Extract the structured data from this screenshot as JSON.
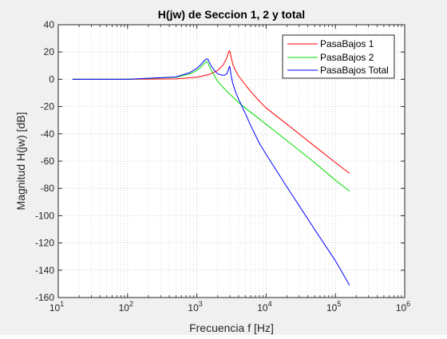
{
  "chart_data": {
    "type": "line",
    "title": "H(jw) de Seccion 1, 2 y total",
    "xlabel": "Frecuencia f [Hz]",
    "ylabel": "Magnitud H(jw) [dB]",
    "xscale": "log",
    "xlim": [
      10,
      1000000
    ],
    "ylim": [
      -160,
      40
    ],
    "x_tick_exponents": [
      "1",
      "2",
      "3",
      "4",
      "5",
      "6"
    ],
    "x_tick_base": "10",
    "y_ticks": [
      40,
      20,
      0,
      -20,
      -40,
      -60,
      -80,
      -100,
      -120,
      -140,
      -160
    ],
    "grid": true,
    "minor_grid": true,
    "legend_position": "top-right",
    "series": [
      {
        "name": "PasaBajos 1",
        "color": "#ff0000",
        "x": [
          16,
          100,
          500,
          1000,
          1500,
          2000,
          2400,
          2700,
          2850,
          2950,
          3000,
          3050,
          3150,
          3300,
          3600,
          4000,
          5000,
          6000,
          8000,
          10000,
          20000,
          50000,
          100000,
          160000
        ],
        "y": [
          0,
          0,
          0.3,
          1.5,
          3.5,
          6.5,
          10.5,
          15.5,
          19.5,
          21,
          20.5,
          19,
          15.5,
          11,
          6.5,
          2.5,
          -4,
          -9,
          -16,
          -21,
          -33,
          -49,
          -61,
          -69
        ]
      },
      {
        "name": "PasaBajos 2",
        "color": "#00dd00",
        "x": [
          16,
          100,
          500,
          800,
          1000,
          1150,
          1300,
          1380,
          1420,
          1450,
          1500,
          1600,
          1800,
          2000,
          2500,
          3000,
          4000,
          5000,
          10000,
          20000,
          50000,
          100000,
          160000
        ],
        "y": [
          0,
          0,
          1.5,
          4,
          6.5,
          9,
          12,
          13,
          12.5,
          12,
          10,
          7,
          2.5,
          -1.5,
          -7,
          -11,
          -17,
          -21,
          -33,
          -45,
          -61,
          -74,
          -82
        ]
      },
      {
        "name": "PasaBajos Total",
        "color": "#0000ff",
        "x": [
          16,
          100,
          500,
          800,
          1000,
          1150,
          1300,
          1380,
          1420,
          1450,
          1500,
          1600,
          1800,
          2000,
          2300,
          2500,
          2700,
          2850,
          2950,
          3000,
          3050,
          3150,
          3300,
          3600,
          4000,
          5000,
          6000,
          8000,
          10000,
          20000,
          50000,
          100000,
          160000
        ],
        "y": [
          0,
          0,
          1.7,
          5,
          8,
          11,
          14,
          14.8,
          15,
          14.5,
          13,
          10,
          6.5,
          4,
          3,
          3,
          4,
          7,
          9.5,
          9,
          6.5,
          2,
          -3,
          -9,
          -14.5,
          -25,
          -34,
          -47,
          -55,
          -79,
          -110,
          -133,
          -151
        ]
      }
    ]
  }
}
